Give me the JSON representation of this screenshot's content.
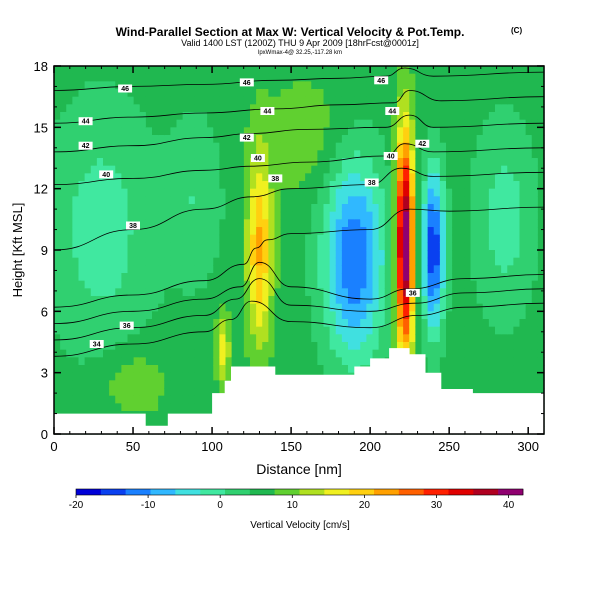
{
  "chart_data": {
    "type": "heatmap",
    "title": "Wind-Parallel Section at Max W: Vertical Velocity & Pot.Temp.",
    "title_mark": "(C)",
    "subtitle": "Valid 1400 LST (1200Z) THU 9 Apr 2009 [18hrFcst@0001z]",
    "subtitle2": "lpxWmax-4@ 32.25,-117.28 km",
    "xlabel": "Distance [nm]",
    "ylabel": "Height [Kft MSL]",
    "xlim": [
      0,
      310
    ],
    "ylim": [
      0,
      18
    ],
    "x_ticks": [
      0,
      50,
      100,
      150,
      200,
      250,
      300
    ],
    "y_ticks": [
      0,
      3,
      6,
      9,
      12,
      15,
      18
    ],
    "colorbar": {
      "label": "Vertical Velocity [cm/s]",
      "min": -20,
      "max": 42,
      "ticks": [
        -20,
        -10,
        0,
        10,
        20,
        30,
        40
      ],
      "colors": [
        "#0000d8",
        "#0a40f0",
        "#1a80ff",
        "#30b8ff",
        "#40e0e0",
        "#40e8a0",
        "#30d070",
        "#20b850",
        "#60d030",
        "#b0e020",
        "#f0f020",
        "#ffd010",
        "#ffa000",
        "#ff6000",
        "#ff2000",
        "#e00000",
        "#b00020",
        "#900070"
      ]
    },
    "background_velocity": 6,
    "velocity_features": [
      {
        "x": 130,
        "z": 9.0,
        "sx": 5.5,
        "sz": 3.2,
        "w": 16
      },
      {
        "x": 107,
        "z": 4.2,
        "sx": 3.0,
        "sz": 1.3,
        "w": 10
      },
      {
        "x": 190,
        "z": 8.6,
        "sx": 14,
        "sz": 3.5,
        "w": -19
      },
      {
        "x": 222,
        "z": 9.3,
        "sx": 4.0,
        "sz": 3.8,
        "w": 38
      },
      {
        "x": 240,
        "z": 9.0,
        "sx": 5.0,
        "sz": 2.8,
        "w": -22
      },
      {
        "x": 30,
        "z": 10.0,
        "sx": 25,
        "sz": 4.5,
        "w": -7
      },
      {
        "x": 90,
        "z": 11.5,
        "sx": 12,
        "sz": 3.0,
        "w": -5
      },
      {
        "x": 285,
        "z": 10.5,
        "sx": 14,
        "sz": 3.5,
        "w": -7
      },
      {
        "x": 50,
        "z": 2.5,
        "sx": 15,
        "sz": 1.2,
        "w": 5
      },
      {
        "x": 160,
        "z": 14.5,
        "sx": 20,
        "sz": 2.0,
        "w": 4
      }
    ],
    "terrain": [
      {
        "x": 0,
        "h": 1.0
      },
      {
        "x": 5,
        "h": 1.0
      },
      {
        "x": 45,
        "h": 1.0
      },
      {
        "x": 50,
        "h": 1.0
      },
      {
        "x": 58,
        "h": 0.4
      },
      {
        "x": 70,
        "h": 0.4
      },
      {
        "x": 72,
        "h": 1.0
      },
      {
        "x": 95,
        "h": 1.0
      },
      {
        "x": 100,
        "h": 2.0
      },
      {
        "x": 108,
        "h": 2.6
      },
      {
        "x": 112,
        "h": 3.3
      },
      {
        "x": 140,
        "h": 2.9
      },
      {
        "x": 175,
        "h": 2.9
      },
      {
        "x": 190,
        "h": 3.3
      },
      {
        "x": 200,
        "h": 3.7
      },
      {
        "x": 212,
        "h": 4.2
      },
      {
        "x": 225,
        "h": 3.9
      },
      {
        "x": 235,
        "h": 3.0
      },
      {
        "x": 245,
        "h": 2.2
      },
      {
        "x": 265,
        "h": 2.0
      },
      {
        "x": 275,
        "h": 2.0
      },
      {
        "x": 310,
        "h": 2.0
      }
    ],
    "theta_contours": [
      {
        "level": 30,
        "pts": [
          [
            0,
            3.8
          ],
          [
            50,
            4.4
          ],
          [
            95,
            5.0
          ],
          [
            112,
            5.6
          ],
          [
            125,
            6.5
          ],
          [
            150,
            5.5
          ],
          [
            200,
            5.2
          ],
          [
            230,
            5.8
          ],
          [
            260,
            6.2
          ],
          [
            310,
            6.4
          ]
        ]
      },
      {
        "level": 32,
        "pts": [
          [
            0,
            4.6
          ],
          [
            50,
            5.2
          ],
          [
            95,
            5.8
          ],
          [
            115,
            6.6
          ],
          [
            130,
            7.6
          ],
          [
            150,
            6.3
          ],
          [
            200,
            6.0
          ],
          [
            228,
            6.4
          ],
          [
            260,
            6.9
          ],
          [
            310,
            7.1
          ]
        ]
      },
      {
        "level": 34,
        "pts": [
          [
            0,
            5.4
          ],
          [
            50,
            6.0
          ],
          [
            95,
            6.6
          ],
          [
            118,
            7.2
          ],
          [
            130,
            8.4
          ],
          [
            150,
            7.2
          ],
          [
            200,
            6.6
          ],
          [
            225,
            7.1
          ],
          [
            260,
            7.6
          ],
          [
            310,
            7.8
          ]
        ]
      },
      {
        "level": 36,
        "pts": [
          [
            0,
            6.2
          ],
          [
            50,
            6.8
          ],
          [
            95,
            7.5
          ],
          [
            120,
            8.3
          ],
          [
            128,
            9.1
          ],
          [
            135,
            9.5
          ],
          [
            150,
            9.8
          ],
          [
            200,
            10.0
          ],
          [
            225,
            11.0
          ],
          [
            250,
            10.9
          ],
          [
            310,
            11.1
          ]
        ]
      },
      {
        "level": 38,
        "pts": [
          [
            0,
            9.0
          ],
          [
            50,
            10.0
          ],
          [
            95,
            11.0
          ],
          [
            125,
            11.6
          ],
          [
            150,
            12.0
          ],
          [
            200,
            12.2
          ],
          [
            220,
            13.0
          ],
          [
            240,
            12.6
          ],
          [
            310,
            12.8
          ]
        ]
      },
      {
        "level": 40,
        "pts": [
          [
            0,
            12.2
          ],
          [
            50,
            12.5
          ],
          [
            95,
            12.9
          ],
          [
            125,
            13.1
          ],
          [
            160,
            13.3
          ],
          [
            210,
            13.6
          ],
          [
            222,
            14.2
          ],
          [
            240,
            13.8
          ],
          [
            310,
            14.0
          ]
        ]
      },
      {
        "level": 42,
        "pts": [
          [
            0,
            13.8
          ],
          [
            50,
            14.1
          ],
          [
            95,
            14.5
          ],
          [
            125,
            14.7
          ],
          [
            160,
            14.9
          ],
          [
            210,
            15.0
          ],
          [
            225,
            15.6
          ],
          [
            240,
            15.0
          ],
          [
            310,
            15.2
          ]
        ]
      },
      {
        "level": 44,
        "pts": [
          [
            0,
            15.2
          ],
          [
            50,
            15.5
          ],
          [
            95,
            15.7
          ],
          [
            140,
            15.9
          ],
          [
            180,
            16.1
          ],
          [
            215,
            16.2
          ],
          [
            225,
            16.8
          ],
          [
            245,
            16.3
          ],
          [
            310,
            16.5
          ]
        ]
      },
      {
        "level": 46,
        "pts": [
          [
            0,
            16.8
          ],
          [
            50,
            17.0
          ],
          [
            95,
            17.1
          ],
          [
            140,
            17.3
          ],
          [
            180,
            17.4
          ],
          [
            210,
            17.5
          ],
          [
            222,
            17.9
          ],
          [
            240,
            17.5
          ],
          [
            310,
            17.7
          ]
        ]
      }
    ],
    "theta_labels": [
      {
        "text": "46",
        "x": 45,
        "z": 16.9
      },
      {
        "text": "46",
        "x": 122,
        "z": 17.2
      },
      {
        "text": "46",
        "x": 207,
        "z": 17.3
      },
      {
        "text": "44",
        "x": 20,
        "z": 15.3
      },
      {
        "text": "44",
        "x": 135,
        "z": 15.8
      },
      {
        "text": "44",
        "x": 214,
        "z": 15.8
      },
      {
        "text": "42",
        "x": 20,
        "z": 14.1
      },
      {
        "text": "42",
        "x": 122,
        "z": 14.5
      },
      {
        "text": "42",
        "x": 233,
        "z": 14.2
      },
      {
        "text": "40",
        "x": 33,
        "z": 12.7
      },
      {
        "text": "40",
        "x": 129,
        "z": 13.5
      },
      {
        "text": "40",
        "x": 213,
        "z": 13.6
      },
      {
        "text": "38",
        "x": 50,
        "z": 10.2
      },
      {
        "text": "38",
        "x": 140,
        "z": 12.5
      },
      {
        "text": "38",
        "x": 201,
        "z": 12.3
      },
      {
        "text": "36",
        "x": 227,
        "z": 6.9
      },
      {
        "text": "36",
        "x": 46,
        "z": 5.3
      },
      {
        "text": "34",
        "x": 27,
        "z": 4.4
      }
    ]
  }
}
